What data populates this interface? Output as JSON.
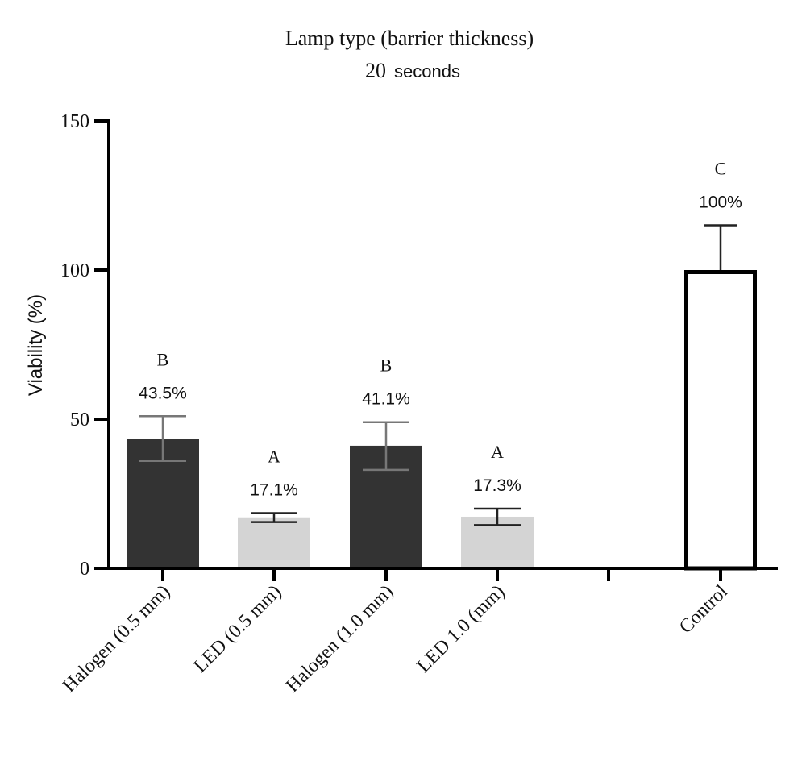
{
  "chart_data": {
    "type": "bar",
    "title": "Lamp type (barrier thickness)",
    "subtitle_number": "20",
    "subtitle_unit": "seconds",
    "ylabel": "Viability (%)",
    "xlabel": "",
    "ylim": [
      0,
      150
    ],
    "yticks": [
      "0",
      "50",
      "100",
      "150"
    ],
    "ytick_values": [
      0,
      50,
      100,
      150
    ],
    "grid": false,
    "categories": [
      "Halogen (0.5 mm)",
      "LED (0.5 mm)",
      "Halogen (1.0 mm)",
      "LED 1.0 (mm)",
      "",
      "Control"
    ],
    "values": [
      43.5,
      17.1,
      41.1,
      17.3,
      null,
      100
    ],
    "error_low": [
      36,
      15.5,
      33,
      14.5,
      null,
      100
    ],
    "error_high": [
      51,
      18.5,
      49,
      20,
      null,
      115
    ],
    "data_labels": [
      "43.5%",
      "17.1%",
      "41.1%",
      "17.3%",
      "",
      "100%"
    ],
    "group_letters": [
      "B",
      "A",
      "B",
      "A",
      "",
      "C"
    ],
    "colors": {
      "halogen": "#333333",
      "led": "#d4d4d4",
      "control_fill": "#ffffff",
      "control_stroke": "#000000",
      "axis": "#000000",
      "error_halogen": "#777777",
      "error_led": "#222222",
      "error_control": "#222222"
    },
    "bar_styles": [
      "halogen",
      "led",
      "halogen",
      "led",
      "",
      "control"
    ]
  }
}
